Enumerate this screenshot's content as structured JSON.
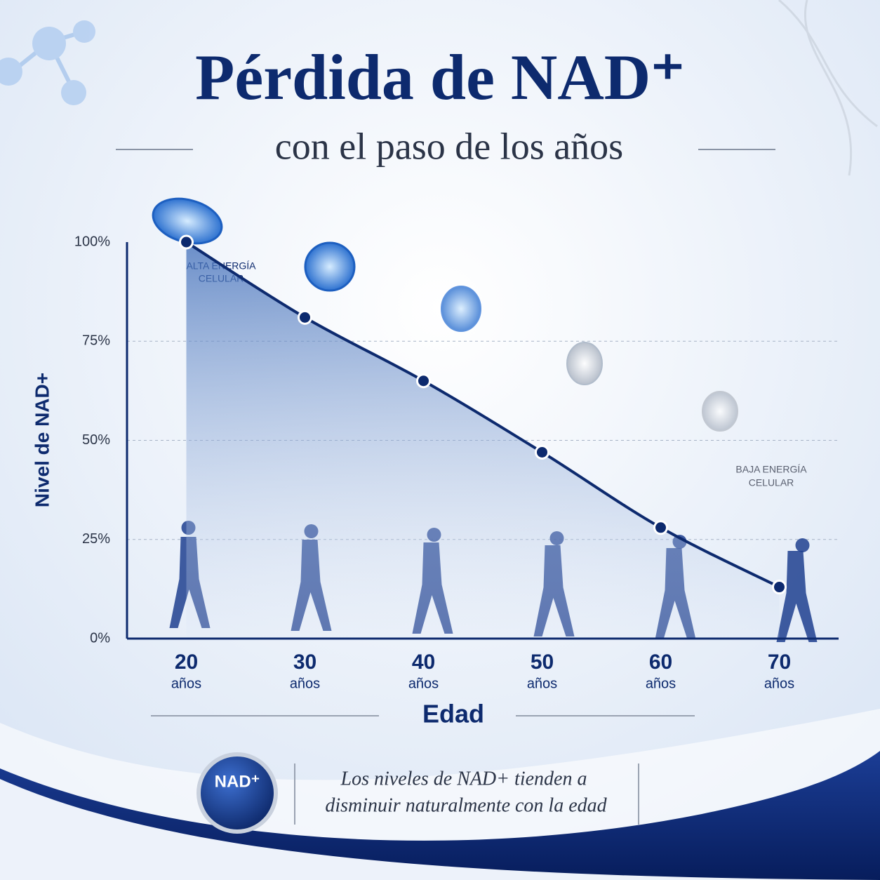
{
  "chart_data": {
    "type": "line",
    "title": "Pérdida de NAD⁺",
    "subtitle": "con el paso de los años",
    "y_label": "Nivel de NAD+",
    "x_label": "Edad",
    "categories": [
      "20",
      "30",
      "40",
      "50",
      "60",
      "70"
    ],
    "category_unit": "años",
    "values": [
      100,
      81,
      65,
      47,
      28,
      13
    ],
    "color": "#0d2a6e",
    "ylim": [
      0,
      100
    ],
    "yticks": [
      {
        "value": 0,
        "label": "0%"
      },
      {
        "value": 25,
        "label": "25%"
      },
      {
        "value": 50,
        "label": "50%"
      },
      {
        "value": 75,
        "label": "75%"
      },
      {
        "value": 100,
        "label": "100%"
      }
    ],
    "grid": true,
    "annotations": {
      "high": [
        "ALTA ENERGÍA",
        "CELULAR"
      ],
      "low": [
        "BAJA ENERGÍA",
        "CELULAR"
      ]
    },
    "footer": {
      "badge": "NAD⁺",
      "note": [
        "Los niveles de NAD+ tienden a",
        "disminuir naturalmente con la edad"
      ]
    }
  }
}
